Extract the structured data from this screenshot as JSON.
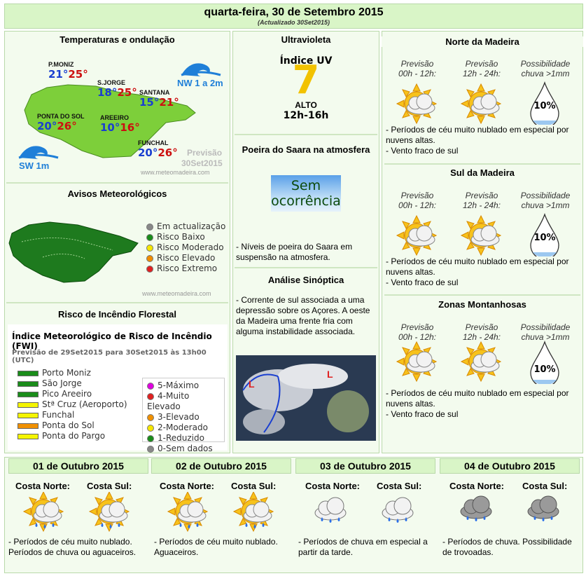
{
  "header": {
    "title": "quarta-feira, 30 de Setembro 2015",
    "updated": "(Actualizado 30Set2015)"
  },
  "temps": {
    "title": "Temperaturas e ondulação",
    "places": [
      {
        "name": "P.MONIZ",
        "min": "21°",
        "max": "25°"
      },
      {
        "name": "S.JORGE",
        "min": "18°",
        "max": "25°"
      },
      {
        "name": "SANTANA",
        "min": "15°",
        "max": "21°"
      },
      {
        "name": "PONTA DO SOL",
        "min": "20°",
        "max": "26°"
      },
      {
        "name": "AREEIRO",
        "min": "10°",
        "max": "16°"
      },
      {
        "name": "FUNCHAL",
        "min": "20°",
        "max": "26°"
      }
    ],
    "wave_north": "NW 1 a 2m",
    "wave_south": "SW 1m",
    "forecast_label": "Previsão",
    "forecast_date": "30Set2015",
    "site": "www.meteomadeira.com"
  },
  "avisos": {
    "title": "Avisos Meteorológicos",
    "legend": [
      {
        "label": "Em actualização",
        "color": "#888888"
      },
      {
        "label": "Risco Baixo",
        "color": "#1a8c1a"
      },
      {
        "label": "Risco Moderado",
        "color": "#f5e600"
      },
      {
        "label": "Risco Elevado",
        "color": "#f08c00"
      },
      {
        "label": "Risco Extremo",
        "color": "#e02020"
      }
    ],
    "site": "www.meteomadeira.com"
  },
  "fire": {
    "title": "Risco de Incêndio Florestal",
    "index_title": "Índice Meteorológico de Risco de Incêndio (FWI)",
    "subtitle": "Previsão de 29Set2015 para 30Set2015 às 13h00 (UTC)",
    "places": [
      {
        "name": "Porto Moniz",
        "color": "#1a8c1a"
      },
      {
        "name": "São Jorge",
        "color": "#1a8c1a"
      },
      {
        "name": "Pico Areeiro",
        "color": "#1a8c1a"
      },
      {
        "name": "Stª Cruz (Aeroporto)",
        "color": "#f5f500"
      },
      {
        "name": "Funchal",
        "color": "#f5f500"
      },
      {
        "name": "Ponta do Sol",
        "color": "#f09000"
      },
      {
        "name": "Ponta do Pargo",
        "color": "#f5f500"
      }
    ],
    "legend": [
      {
        "label": "5-Máximo",
        "color": "#e000e0"
      },
      {
        "label": "4-Muito Elevado",
        "color": "#e02020"
      },
      {
        "label": "3-Elevado",
        "color": "#f09000"
      },
      {
        "label": "2-Moderado",
        "color": "#f5e600"
      },
      {
        "label": "1-Reduzido",
        "color": "#1a8c1a"
      },
      {
        "label": "0-Sem dados",
        "color": "#888888"
      }
    ]
  },
  "uv": {
    "title": "Ultravioleta",
    "index_label": "Índice UV",
    "value": "7",
    "level": "ALTO",
    "hours": "12h-16h"
  },
  "saara": {
    "title": "Poeira do Saara na atmosfera",
    "box_line1": "Sem",
    "box_line2": "ocorrência",
    "text": "- Níveis de poeira do Saara em suspensão na atmosfera."
  },
  "sinoptica": {
    "title": "Análise Sinóptica",
    "text": "- Corrente de sul associada a uma depressão sobre os Açores. A oeste da Madeira uma frente fria com alguma instabilidade associada."
  },
  "regions": [
    {
      "title": "Norte da Madeira",
      "col1": "Previsão 00h - 12h:",
      "col2": "Previsão 12h - 24h:",
      "col3": "Possibilidade chuva >1mm",
      "rain": "10%",
      "text1": "- Períodos de céu muito nublado em especial por nuvens altas.",
      "text2": "- Vento fraco de sul"
    },
    {
      "title": "Sul da Madeira",
      "col1": "Previsão 00h - 12h:",
      "col2": "Previsão 12h - 24h:",
      "col3": "Possibilidade chuva >1mm",
      "rain": "10%",
      "text1": "- Períodos de céu muito nublado em especial por nuvens altas.",
      "text2": "- Vento fraco de sul"
    },
    {
      "title": "Zonas Montanhosas",
      "col1": "Previsão 00h - 12h:",
      "col2": "Previsão 12h - 24h:",
      "col3": "Possibilidade chuva >1mm",
      "rain": "10%",
      "text1": "- Períodos de céu muito nublado em especial por nuvens altas.",
      "text2": "- Vento fraco de sul"
    }
  ],
  "days": [
    {
      "title": "01 de Outubro 2015",
      "north": "Costa Norte:",
      "south": "Costa Sul:",
      "text": "- Períodos de céu muito nublado. Períodos de chuva ou aguaceiros."
    },
    {
      "title": "02 de Outubro 2015",
      "north": "Costa Norte:",
      "south": "Costa Sul:",
      "text": "- Períodos de céu muito nublado. Aguaceiros."
    },
    {
      "title": "03 de Outubro 2015",
      "north": "Costa Norte:",
      "south": "Costa Sul:",
      "text": "- Períodos de chuva em especial a partir da tarde."
    },
    {
      "title": "04 de Outubro 2015",
      "north": "Costa Norte:",
      "south": "Costa Sul:",
      "text": "- Períodos de chuva. Possibilidade de trovoadas."
    }
  ]
}
